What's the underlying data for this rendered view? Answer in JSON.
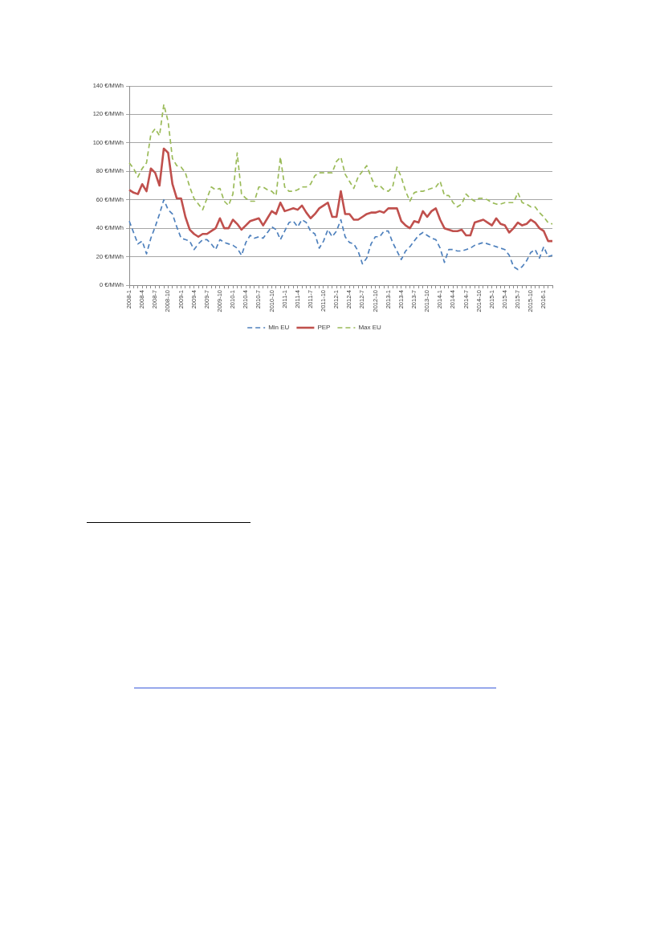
{
  "chart_data": {
    "type": "line",
    "categories": [
      "2008-1",
      null,
      null,
      "2008-4",
      null,
      null,
      "2008-7",
      null,
      null,
      "2008-10",
      null,
      null,
      "2009-1",
      null,
      null,
      "2009-4",
      null,
      null,
      "2009-7",
      null,
      null,
      "2009-10",
      null,
      null,
      "2010-1",
      null,
      null,
      "2010-4",
      null,
      null,
      "2010-7",
      null,
      null,
      "2010-10",
      null,
      null,
      "2011-1",
      null,
      null,
      "2011-4",
      null,
      null,
      "2011-7",
      null,
      null,
      "2011-10",
      null,
      null,
      "2012-1",
      null,
      null,
      "2012-4",
      null,
      null,
      "2012-7",
      null,
      null,
      "2012-10",
      null,
      null,
      "2013-1",
      null,
      null,
      "2013-4",
      null,
      null,
      "2013-7",
      null,
      null,
      "2013-10",
      null,
      null,
      "2014-1",
      null,
      null,
      "2014-4",
      null,
      null,
      "2014-7",
      null,
      null,
      "2014-10",
      null,
      null,
      "2015-1",
      null,
      null,
      "2015-4",
      null,
      null,
      "2015-7",
      null,
      null,
      "2015-10",
      null,
      null,
      "2016-1",
      null,
      null
    ],
    "series": [
      {
        "name": "Min EU",
        "color": "#4f81bd",
        "line_style": "dashed",
        "values": [
          45,
          37,
          29,
          31,
          22,
          33,
          41,
          50,
          60,
          53,
          50,
          41,
          33,
          32,
          31,
          25,
          29,
          32,
          32,
          29,
          25,
          32,
          30,
          29,
          28,
          26,
          21,
          30,
          35,
          33,
          34,
          33,
          37,
          41,
          39,
          32,
          38,
          44,
          45,
          41,
          46,
          44,
          38,
          36,
          26,
          31,
          39,
          34,
          38,
          46,
          34,
          30,
          29,
          24,
          15,
          19,
          29,
          34,
          34,
          38,
          38,
          30,
          24,
          18,
          24,
          27,
          31,
          35,
          37,
          35,
          33,
          32,
          26,
          16,
          25,
          25,
          24,
          24,
          25,
          26,
          28,
          29,
          30,
          29,
          28,
          27,
          26,
          25,
          21,
          13,
          11,
          13,
          17,
          23,
          25,
          19,
          27,
          20,
          21
        ]
      },
      {
        "name": "PEP",
        "color": "#c0504d",
        "line_style": "solid",
        "values": [
          67,
          65,
          64,
          71,
          66,
          82,
          79,
          70,
          96,
          93,
          71,
          61,
          61,
          48,
          39,
          36,
          34,
          36,
          36,
          38,
          40,
          47,
          40,
          40,
          46,
          43,
          39,
          42,
          45,
          46,
          47,
          42,
          47,
          52,
          50,
          58,
          52,
          53,
          54,
          53,
          56,
          51,
          47,
          50,
          54,
          56,
          58,
          48,
          48,
          66,
          50,
          50,
          46,
          46,
          48,
          50,
          51,
          51,
          52,
          51,
          54,
          54,
          54,
          45,
          42,
          40,
          45,
          44,
          52,
          48,
          52,
          54,
          46,
          40,
          39,
          38,
          38,
          39,
          35,
          35,
          44,
          45,
          46,
          44,
          42,
          47,
          43,
          42,
          37,
          40,
          44,
          42,
          43,
          46,
          44,
          40,
          38,
          31,
          31
        ]
      },
      {
        "name": "Max EU",
        "color": "#9bbb59",
        "line_style": "dashed",
        "values": [
          86,
          82,
          76,
          82,
          86,
          106,
          110,
          105,
          127,
          115,
          89,
          84,
          83,
          79,
          69,
          61,
          57,
          53,
          61,
          69,
          67,
          68,
          59,
          56,
          64,
          93,
          64,
          61,
          59,
          59,
          69,
          69,
          67,
          66,
          63,
          90,
          69,
          66,
          66,
          67,
          69,
          69,
          71,
          77,
          79,
          79,
          79,
          79,
          87,
          90,
          78,
          73,
          68,
          76,
          80,
          84,
          76,
          69,
          70,
          67,
          66,
          69,
          83,
          76,
          66,
          59,
          65,
          66,
          66,
          67,
          68,
          69,
          73,
          63,
          63,
          58,
          55,
          57,
          64,
          61,
          59,
          61,
          61,
          60,
          58,
          57,
          57,
          58,
          58,
          58,
          65,
          58,
          57,
          55,
          55,
          51,
          48,
          44,
          43
        ]
      }
    ],
    "ylim": [
      0,
      140
    ],
    "yticks": [
      {
        "value": 0,
        "label": "0 €/MWh"
      },
      {
        "value": 20,
        "label": "20 €/MWh"
      },
      {
        "value": 40,
        "label": "40 €/MWh"
      },
      {
        "value": 60,
        "label": "60 €/MWh"
      },
      {
        "value": 80,
        "label": "80 €/MWh"
      },
      {
        "value": 100,
        "label": "100 €/MWh"
      },
      {
        "value": 120,
        "label": "120 €/MWh"
      },
      {
        "value": 140,
        "label": "140 €/MWh"
      }
    ],
    "grid": "y",
    "legend": "bottom"
  }
}
